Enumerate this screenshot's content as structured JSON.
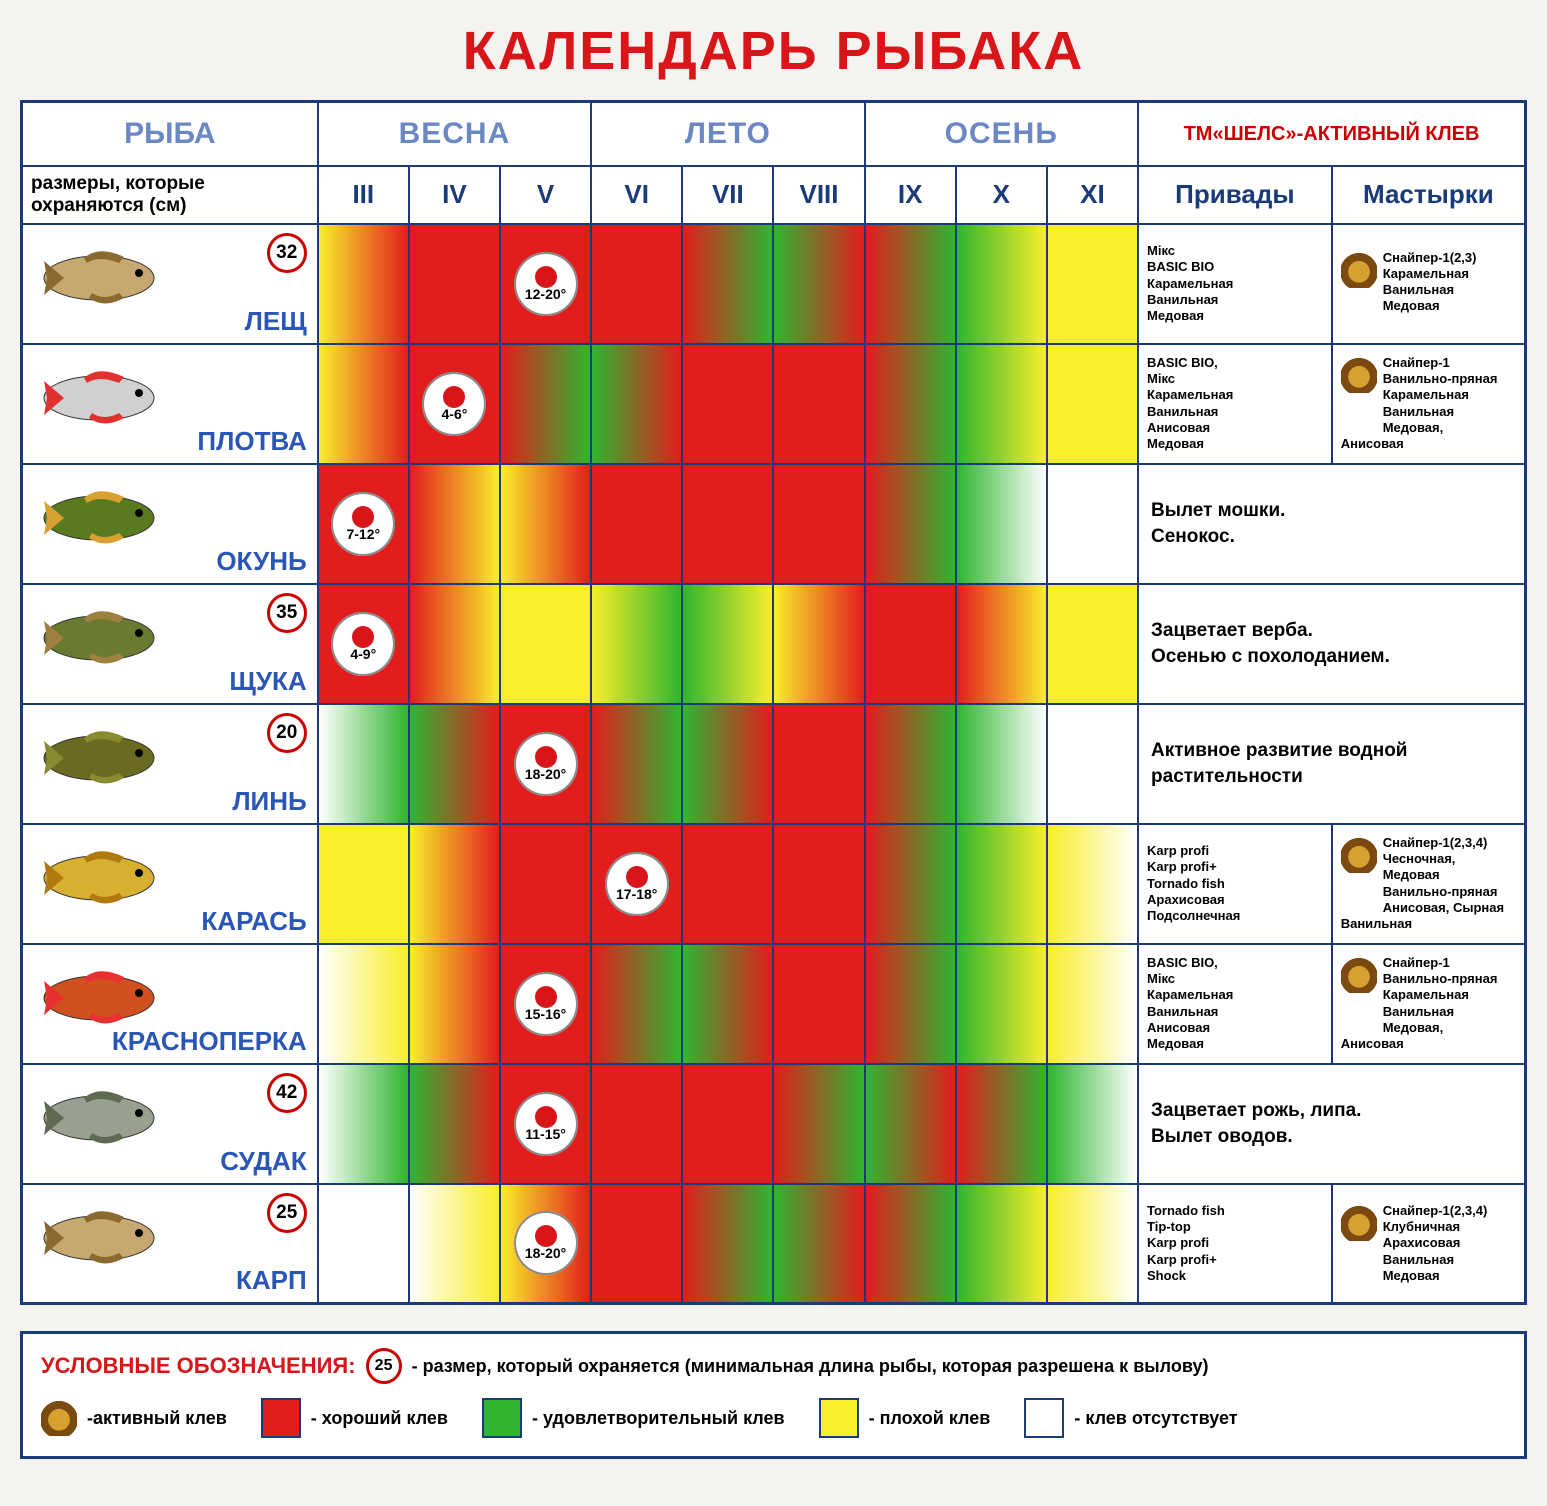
{
  "title": "КАЛЕНДАРЬ РЫБАКА",
  "colors": {
    "border": "#1a3a7a",
    "title": "#d8161a",
    "season_text": "#6b88c4",
    "good": "#e21d1d",
    "ok": "#2fb52f",
    "poor": "#f8ee2b",
    "none": "#ffffff",
    "fade_ry": "linear-gradient(90deg,#e21d1d 0%,#f8ee2b 100%)",
    "fade_yr": "linear-gradient(90deg,#f8ee2b 0%,#e21d1d 100%)",
    "fade_rg": "linear-gradient(90deg,#e21d1d 0%,#2fb52f 100%)",
    "fade_gr": "linear-gradient(90deg,#2fb52f 0%,#e21d1d 100%)",
    "fade_gy": "linear-gradient(90deg,#2fb52f 0%,#f8ee2b 100%)",
    "fade_yg": "linear-gradient(90deg,#f8ee2b 0%,#2fb52f 100%)",
    "fade_yn": "linear-gradient(90deg,#f8ee2b 0%,#ffffff 100%)",
    "fade_ny": "linear-gradient(90deg,#ffffff 0%,#f8ee2b 100%)",
    "fade_gn": "linear-gradient(90deg,#2fb52f 0%,#ffffff 100%)",
    "fade_ng": "linear-gradient(90deg,#ffffff 0%,#2fb52f 100%)"
  },
  "headers": {
    "fish": "РЫБА",
    "spring": "ВЕСНА",
    "summer": "ЛЕТО",
    "autumn": "ОСЕНЬ",
    "tm": "ТМ«ШЕЛС»-АКТИВНЫЙ КЛЕВ",
    "sizes_note": "размеры, которые охраняются (см)",
    "months": [
      "III",
      "IV",
      "V",
      "VI",
      "VII",
      "VIII",
      "IX",
      "X",
      "XI"
    ],
    "privady": "Привады",
    "mastyrki": "Мастырки"
  },
  "fish": [
    {
      "name": "ЛЕЩ",
      "size": "32",
      "fish_colors": [
        "#c7a870",
        "#8a6a30"
      ],
      "months": [
        "yr",
        "good",
        "good",
        "good",
        "rg",
        "gr",
        "rg",
        "gy",
        "poor"
      ],
      "spawn": {
        "col": 2,
        "temp": "12-20°"
      },
      "privady": "Мікс\nBASIC BIO\nКарамельная\nВанильная\nМедовая",
      "mastyrki": "Снайпер-1(2,3)\nКарамельная\nВанильная\nМедовая"
    },
    {
      "name": "ПЛОТВА",
      "size": null,
      "fish_colors": [
        "#d0d0d0",
        "#e03030"
      ],
      "months": [
        "yr",
        "good",
        "rg",
        "gr",
        "good",
        "good",
        "rg",
        "gy",
        "poor"
      ],
      "spawn": {
        "col": 1,
        "temp": "4-6°"
      },
      "privady": "BASIC BIO,\nМікс\nКарамельная\nВанильная\nАнисовая\nМедовая",
      "mastyrki": "Снайпер-1\nВанильно-пряная\nКарамельная\nВанильная\nМедовая,\nАнисовая"
    },
    {
      "name": "ОКУНЬ",
      "size": null,
      "fish_colors": [
        "#5a7a20",
        "#d8a030"
      ],
      "months": [
        "good",
        "ry",
        "yr",
        "good",
        "good",
        "good",
        "rg",
        "gn",
        "none"
      ],
      "spawn": {
        "col": 0,
        "temp": "7-12°"
      },
      "note": "Вылет мошки.\nСенокос."
    },
    {
      "name": "ЩУКА",
      "size": "35",
      "fish_colors": [
        "#6a7a30",
        "#a08040"
      ],
      "months": [
        "good",
        "ry",
        "poor",
        "yg",
        "gy",
        "yr",
        "good",
        "ry",
        "poor"
      ],
      "spawn": {
        "col": 0,
        "temp": "4-9°"
      },
      "note": "Зацветает верба.\nОсенью с похолоданием."
    },
    {
      "name": "ЛИНЬ",
      "size": "20",
      "fish_colors": [
        "#6a6a20",
        "#8a8a30"
      ],
      "months": [
        "ng",
        "gr",
        "good",
        "rg",
        "gr",
        "good",
        "rg",
        "gn",
        "none"
      ],
      "spawn": {
        "col": 2,
        "temp": "18-20°"
      },
      "note": "Активное развитие водной растительности"
    },
    {
      "name": "КАРАСЬ",
      "size": null,
      "fish_colors": [
        "#d8b030",
        "#b07a10"
      ],
      "months": [
        "poor",
        "yr",
        "good",
        "good",
        "good",
        "good",
        "rg",
        "gy",
        "yn"
      ],
      "spawn": {
        "col": 3,
        "temp": "17-18°"
      },
      "privady": "Karp profi\nKarp profi+\nTornado fish\nАрахисовая\nПодсолнечная",
      "mastyrki": "Снайпер-1(2,3,4)\nЧесночная,\nМедовая\nВанильно-пряная\nАнисовая, Сырная\nВанильная"
    },
    {
      "name": "КРАСНОПЕРКА",
      "size": null,
      "fish_colors": [
        "#d05020",
        "#e83030"
      ],
      "months": [
        "ny",
        "yr",
        "good",
        "rg",
        "gr",
        "good",
        "rg",
        "gy",
        "yn"
      ],
      "spawn": {
        "col": 2,
        "temp": "15-16°"
      },
      "privady": "BASIC BIO,\nМікс\nКарамельная\nВанильная\nАнисовая\nМедовая",
      "mastyrki": "Снайпер-1\nВанильно-пряная\nКарамельная\nВанильная\nМедовая,\nАнисовая"
    },
    {
      "name": "СУДАК",
      "size": "42",
      "fish_colors": [
        "#9aa090",
        "#606a50"
      ],
      "months": [
        "ng",
        "gr",
        "good",
        "good",
        "good",
        "rg",
        "gr",
        "rg",
        "gn"
      ],
      "spawn": {
        "col": 2,
        "temp": "11-15°"
      },
      "note": "Зацветает рожь, липа.\nВылет оводов."
    },
    {
      "name": "КАРП",
      "size": "25",
      "fish_colors": [
        "#c7a870",
        "#8a6a30"
      ],
      "months": [
        "none",
        "ny",
        "yr",
        "good",
        "rg",
        "gr",
        "rg",
        "gy",
        "yn"
      ],
      "spawn": {
        "col": 2,
        "temp": "18-20°"
      },
      "privady": "Tornado fish\nTip-top\nKarp profi\nKarp profi+\nShock",
      "mastyrki": "Снайпер-1(2,3,4)\nКлубничная\nАрахисовая\nВанильная\nМедовая"
    }
  ],
  "legend": {
    "heading": "УСЛОВНЫЕ ОБОЗНАЧЕНИЯ:",
    "size_example": "25",
    "size_text": "- размер, который охраняется (минимальная длина рыбы, которая разрешена к вылову)",
    "items": [
      {
        "kind": "beetle",
        "text": "-активный клев"
      },
      {
        "kind": "sw",
        "color": "good",
        "text": "- хороший клев"
      },
      {
        "kind": "sw",
        "color": "ok",
        "text": "- удовлетворительный клев"
      },
      {
        "kind": "sw",
        "color": "poor",
        "text": "- плохой клев"
      },
      {
        "kind": "sw",
        "color": "none",
        "text": "- клев отсутствует"
      }
    ]
  }
}
